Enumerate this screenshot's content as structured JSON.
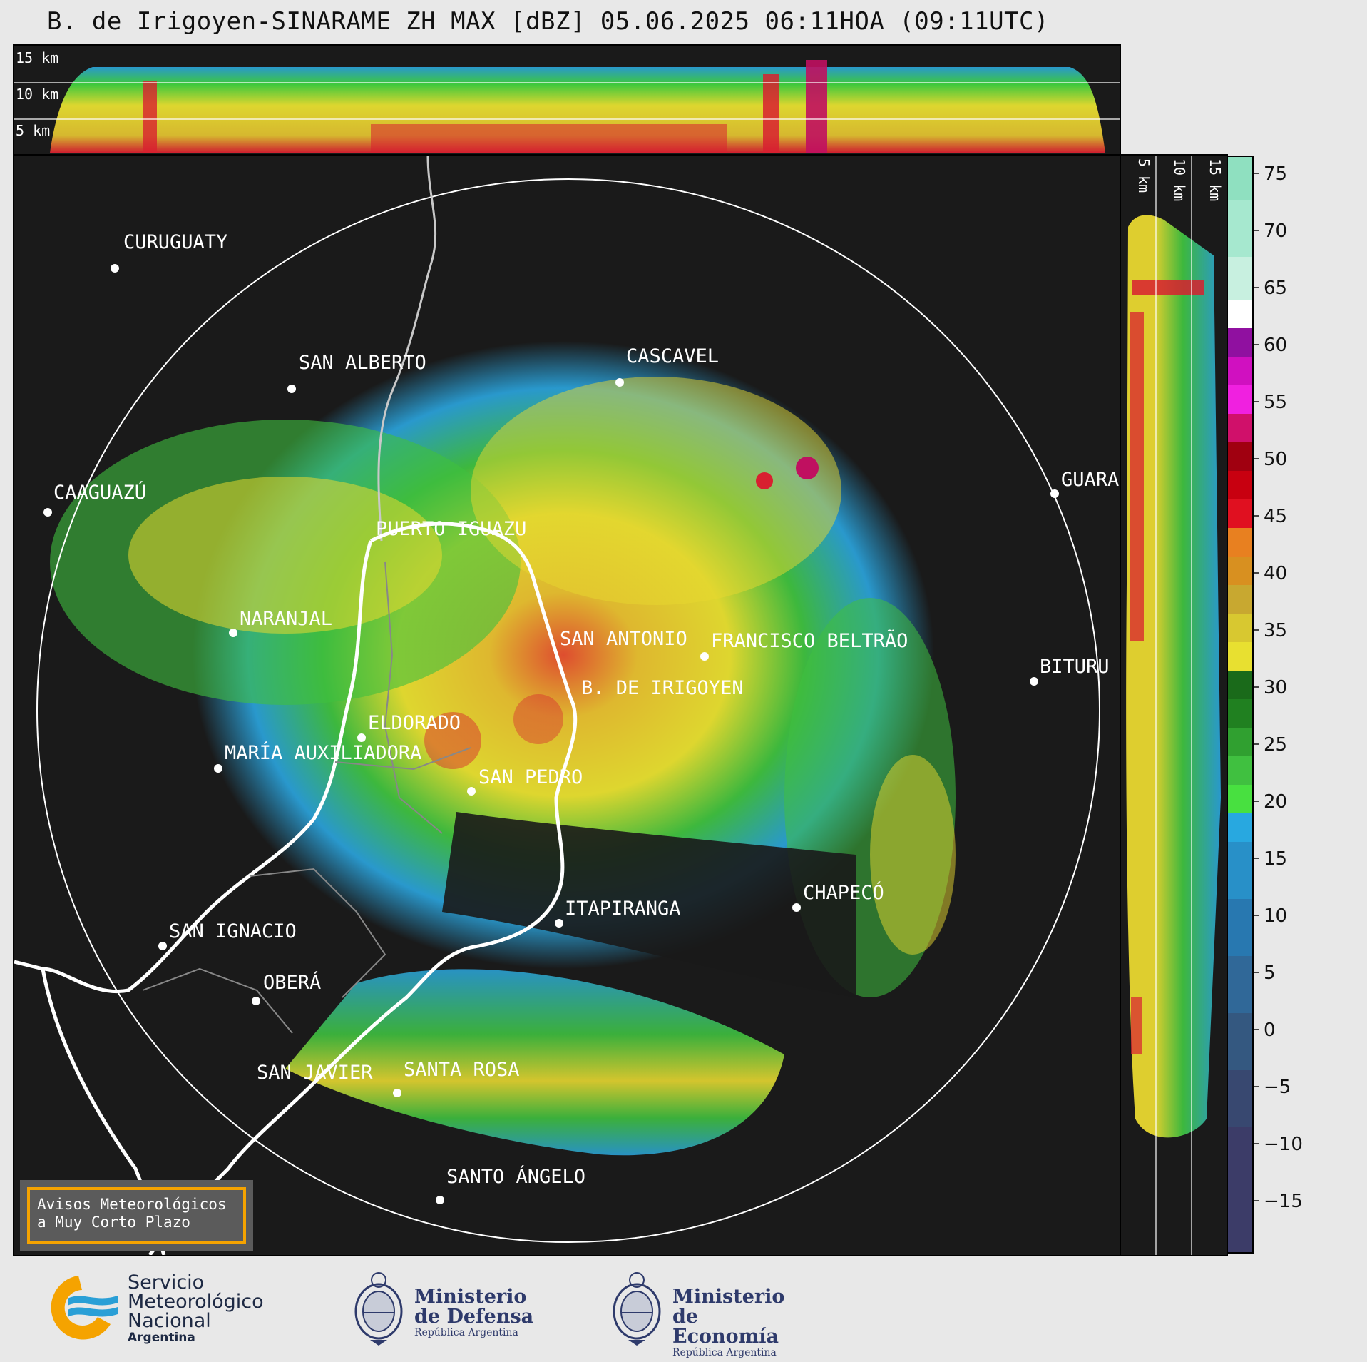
{
  "title": "B. de Irigoyen-SINARAME ZH MAX [dBZ] 05.06.2025 06:11HOA (09:11UTC)",
  "top_panel": {
    "height_labels": [
      "15 km",
      "10 km",
      "5 km"
    ]
  },
  "side_panel": {
    "height_labels": [
      "5 km",
      "10 km",
      "15 km"
    ]
  },
  "colorbar": {
    "unit": "dBZ",
    "ticks": [
      "75",
      "70",
      "65",
      "60",
      "55",
      "50",
      "45",
      "40",
      "35",
      "30",
      "25",
      "20",
      "15",
      "10",
      "5",
      "0",
      "−5",
      "−10",
      "−15"
    ]
  },
  "cities": [
    {
      "name": "CURUGUATY"
    },
    {
      "name": "SAN ALBERTO"
    },
    {
      "name": "CASCAVEL"
    },
    {
      "name": "CAAGUAZÚ"
    },
    {
      "name": "GUARA"
    },
    {
      "name": "PUERTO IGUAZU"
    },
    {
      "name": "NARANJAL"
    },
    {
      "name": "SAN ANTONIO"
    },
    {
      "name": "FRANCISCO BELTRÃO"
    },
    {
      "name": "BITURU"
    },
    {
      "name": "B. DE IRIGOYEN"
    },
    {
      "name": "ELDORADO"
    },
    {
      "name": "MARÍA AUXILIADORA"
    },
    {
      "name": "SAN PEDRO"
    },
    {
      "name": "ITAPIRANGA"
    },
    {
      "name": "CHAPECÓ"
    },
    {
      "name": "SAN IGNACIO"
    },
    {
      "name": "OBERÁ"
    },
    {
      "name": "SAN JAVIER"
    },
    {
      "name": "SANTA ROSA"
    },
    {
      "name": "SANTO ÁNGELO"
    }
  ],
  "notice": {
    "line1": "Avisos Meteorológicos",
    "line2": "a Muy Corto Plazo"
  },
  "footer": {
    "smn": {
      "line1": "Servicio",
      "line2": "Meteorológico",
      "line3": "Nacional",
      "line4": "Argentina"
    },
    "defensa": {
      "line1": "Ministerio",
      "line2": "de Defensa",
      "sub": "República Argentina"
    },
    "economia": {
      "line1": "Ministerio",
      "line2": "de Economía",
      "sub": "República Argentina"
    }
  },
  "colors": {
    "background": "#1a1a1a",
    "page": "#e8e8e8",
    "notice_border": "#f5a300",
    "smn_yellow": "#f5a300",
    "smn_blue": "#2a9fd6"
  }
}
